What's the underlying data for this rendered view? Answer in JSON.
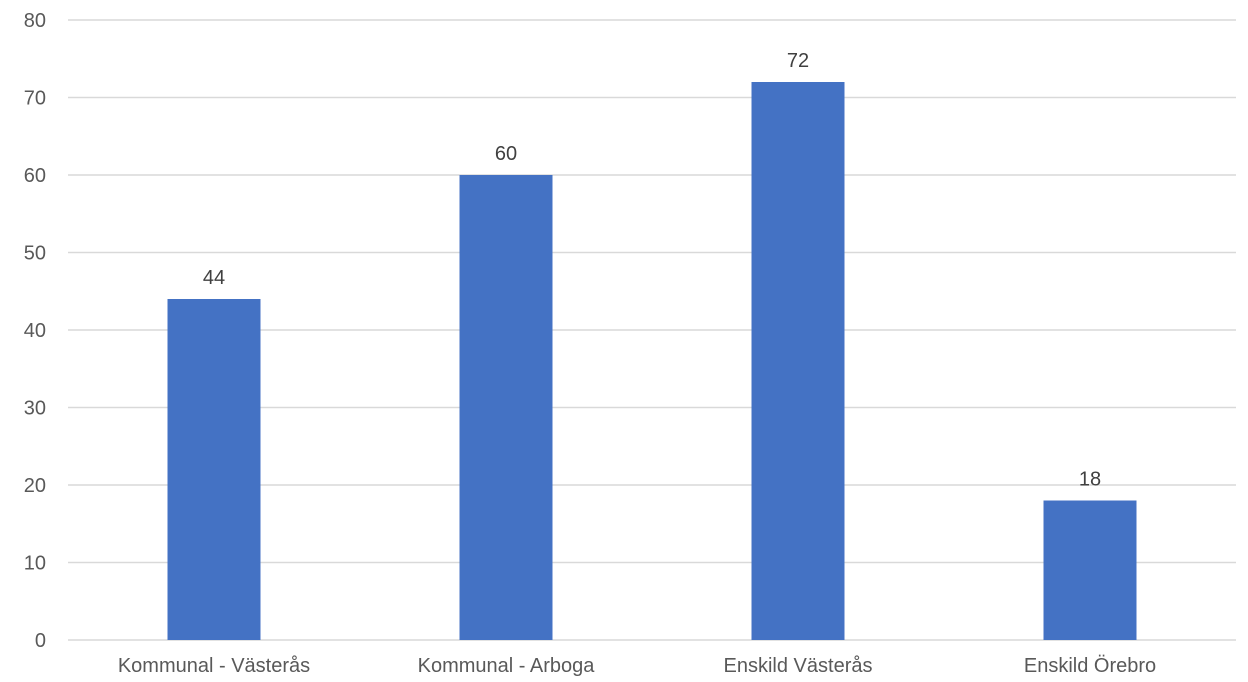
{
  "chart_data": {
    "type": "bar",
    "categories": [
      "Kommunal - Västerås",
      "Kommunal - Arboga",
      "Enskild Västerås",
      "Enskild Örebro"
    ],
    "values": [
      44,
      60,
      72,
      18
    ],
    "data_labels": [
      "44",
      "60",
      "72",
      "18"
    ],
    "ylim": [
      0,
      80
    ],
    "yticks": [
      0,
      10,
      20,
      30,
      40,
      50,
      60,
      70,
      80
    ],
    "grid": true,
    "legend": "none",
    "bar_color": "#4472c4"
  }
}
